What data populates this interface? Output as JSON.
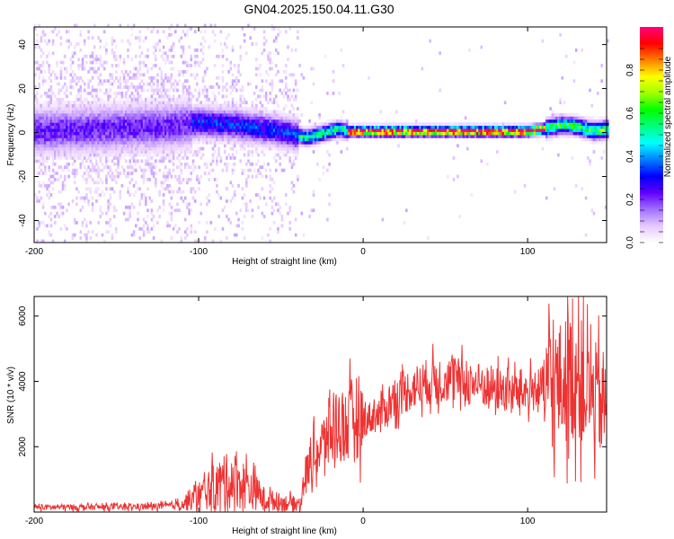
{
  "title": "GN04.2025.150.04.11.G30",
  "chart_data": [
    {
      "type": "heatmap",
      "xlabel": "Height of straight line (km)",
      "ylabel": "Frequency (Hz)",
      "xlim": [
        -200,
        148
      ],
      "ylim": [
        -50,
        48
      ],
      "xticks": [
        -200,
        -100,
        0,
        100
      ],
      "yticks": [
        -40,
        -20,
        0,
        20,
        40
      ],
      "colorbar": {
        "label": "Normalized spectral amplitude",
        "ticks": [
          0.0,
          0.2,
          0.4,
          0.6,
          0.8
        ],
        "range": [
          0,
          1
        ],
        "colors": [
          "#ffffff",
          "#e6c8ff",
          "#a070ff",
          "#6000ff",
          "#0000ff",
          "#0080ff",
          "#00ffff",
          "#00ff80",
          "#00ff00",
          "#a0ff00",
          "#ffff00",
          "#ff8000",
          "#ff0000",
          "#ff0080"
        ]
      },
      "ridge": {
        "x": [
          -200,
          -160,
          -120,
          -100,
          -80,
          -60,
          -45,
          -35,
          -25,
          -15,
          -10,
          0,
          50,
          100,
          110,
          120,
          130,
          140,
          148
        ],
        "y": [
          0,
          1,
          2,
          4,
          3,
          1,
          -1,
          -3,
          -1,
          1,
          0,
          0,
          0,
          0,
          1,
          3,
          2,
          0,
          1
        ]
      },
      "grid": false
    },
    {
      "type": "line",
      "xlabel": "Height of straight line (km)",
      "ylabel": "SNR (10 * v/v)",
      "xlim": [
        -200,
        148
      ],
      "ylim": [
        0,
        6600
      ],
      "xticks": [
        -200,
        -100,
        0,
        100
      ],
      "yticks": [
        2000,
        4000,
        6000
      ],
      "color": "#ee3333",
      "series": [
        {
          "x": [
            -200,
            -180,
            -160,
            -140,
            -120,
            -110,
            -100,
            -90,
            -80,
            -70,
            -60,
            -50,
            -40,
            -38,
            -35,
            -30,
            -25,
            -20,
            -15,
            -10,
            -5,
            0,
            10,
            20,
            30,
            40,
            50,
            60,
            70,
            80,
            90,
            100,
            110,
            120,
            130,
            140,
            148
          ],
          "y": [
            150,
            150,
            150,
            160,
            180,
            250,
            500,
            800,
            1000,
            800,
            400,
            300,
            250,
            300,
            1200,
            1700,
            2000,
            2500,
            2700,
            2600,
            3000,
            2800,
            3000,
            3500,
            3800,
            4000,
            4100,
            4000,
            3900,
            3800,
            3700,
            3700,
            3800,
            3900,
            4200,
            3500,
            3300
          ]
        }
      ],
      "grid": false
    }
  ]
}
